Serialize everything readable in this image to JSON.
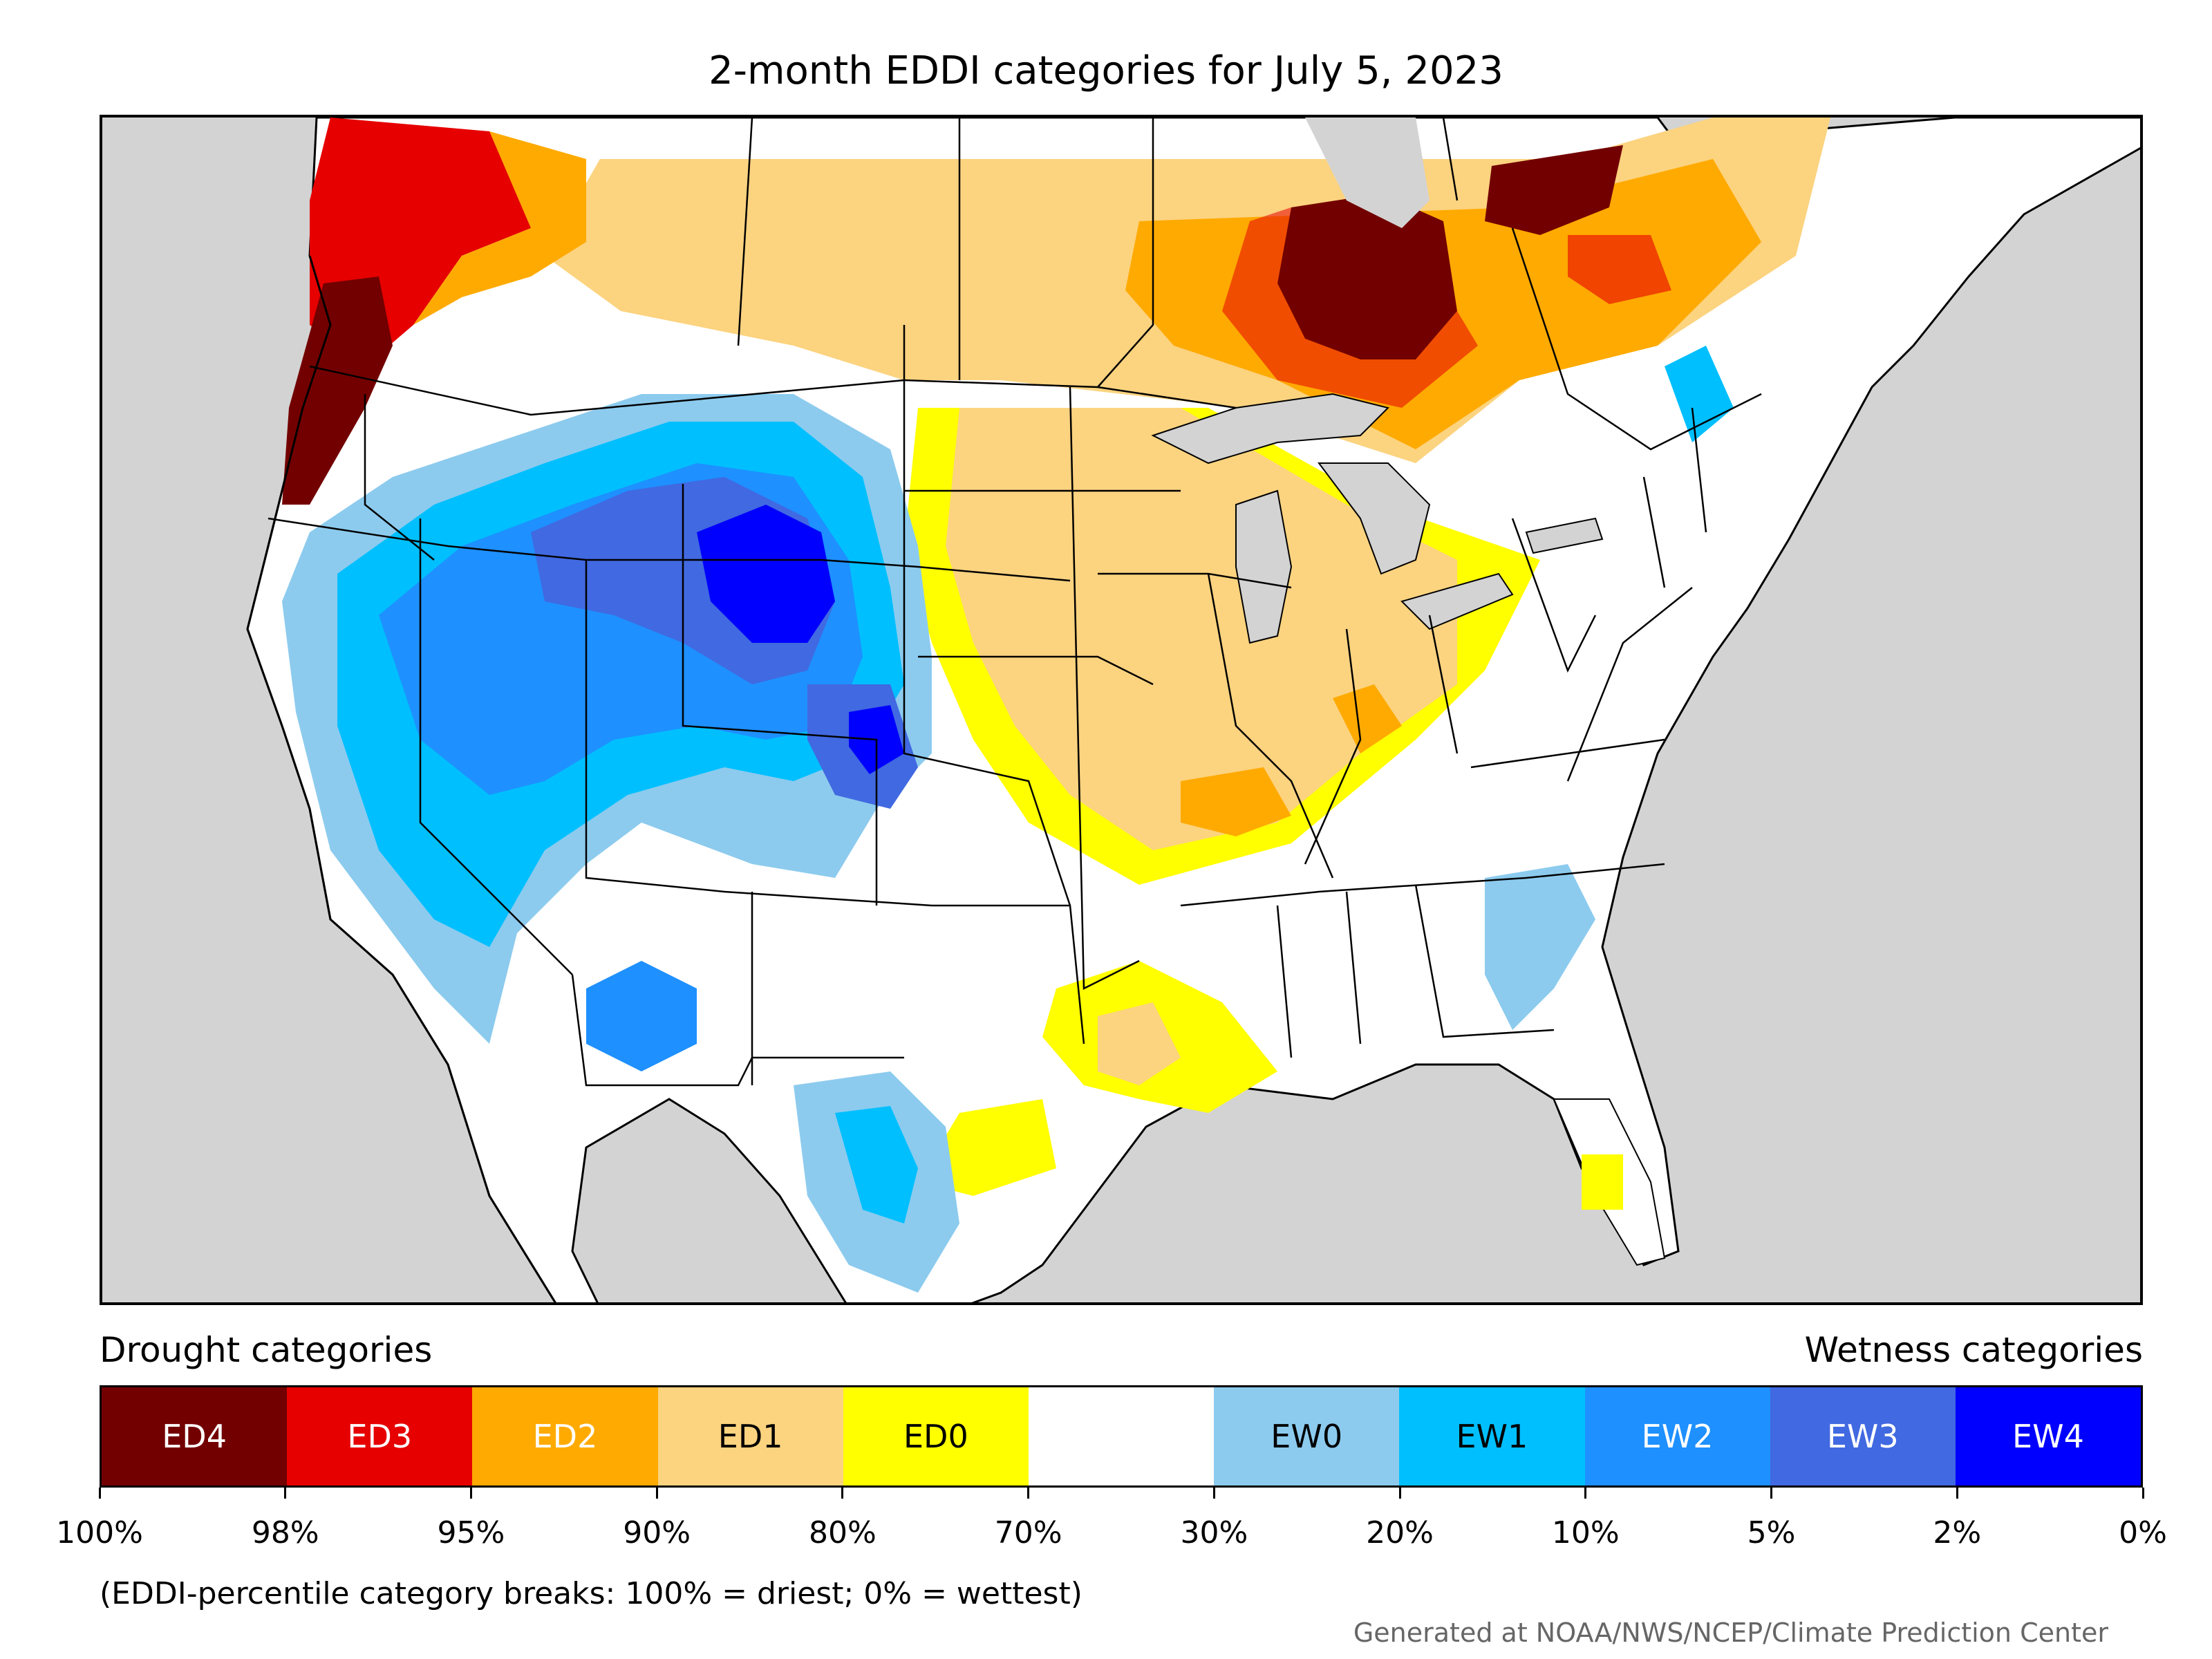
{
  "title": "2-month EDDI categories for July 5, 2023",
  "legend": {
    "drought_heading": "Drought categories",
    "wetness_heading": "Wetness categories",
    "categories": [
      {
        "label": "ED4",
        "color": "#730000",
        "text_color": "#ffffff"
      },
      {
        "label": "ED3",
        "color": "#e60000",
        "text_color": "#ffffff"
      },
      {
        "label": "ED2",
        "color": "#ffaa00",
        "text_color": "#ffffff"
      },
      {
        "label": "ED1",
        "color": "#fcd37f",
        "text_color": "#000000"
      },
      {
        "label": "ED0",
        "color": "#ffff00",
        "text_color": "#000000"
      },
      {
        "label": "",
        "color": "#ffffff",
        "text_color": "#000000"
      },
      {
        "label": "EW0",
        "color": "#8ccbee",
        "text_color": "#000000"
      },
      {
        "label": "EW1",
        "color": "#00bfff",
        "text_color": "#000000"
      },
      {
        "label": "EW2",
        "color": "#1e90ff",
        "text_color": "#ffffff"
      },
      {
        "label": "EW3",
        "color": "#4169e1",
        "text_color": "#ffffff"
      },
      {
        "label": "EW4",
        "color": "#0000ff",
        "text_color": "#ffffff"
      }
    ],
    "breaks": [
      "100%",
      "98%",
      "95%",
      "90%",
      "80%",
      "70%",
      "30%",
      "20%",
      "10%",
      "5%",
      "2%",
      "0%"
    ],
    "note": "(EDDI-percentile category breaks: 100% = driest; 0% = wettest)"
  },
  "credit": "Generated at NOAA/NWS/NCEP/Climate Prediction Center",
  "map": {
    "land_color": "#ffffff",
    "water_color": "#d3d3d3",
    "regions": [
      {
        "name": "pacific-northwest-coast",
        "category": "ED4"
      },
      {
        "name": "ontario-superior",
        "category": "ED4"
      },
      {
        "name": "quebec-north",
        "category": "ED4"
      },
      {
        "name": "midwest",
        "category": "ED1"
      },
      {
        "name": "great-basin-rockies",
        "category": "EW2"
      },
      {
        "name": "wyoming-core",
        "category": "EW4"
      },
      {
        "name": "colorado-core",
        "category": "EW4"
      }
    ]
  }
}
